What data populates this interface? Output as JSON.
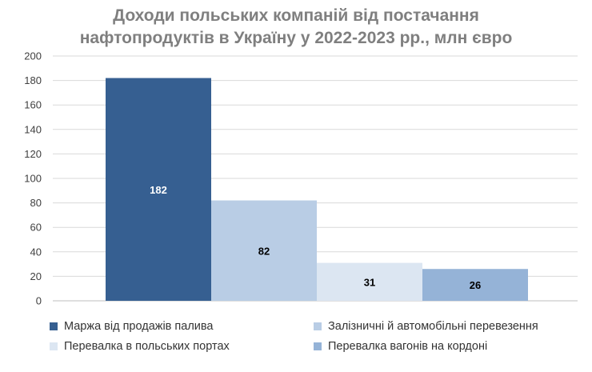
{
  "chart_data": {
    "type": "bar",
    "title_lines": [
      "Доходи польських компаній від постачання",
      "нафтопродуктів в Україну у 2022-2023 рр., млн євро"
    ],
    "ylim": [
      0,
      200
    ],
    "yticks": [
      0,
      20,
      40,
      60,
      80,
      100,
      120,
      140,
      160,
      180,
      200
    ],
    "grid": true,
    "legend_position": "bottom",
    "series": [
      {
        "name": "Маржа від продажів палива",
        "value": 182,
        "label": "182",
        "color": "#365f91"
      },
      {
        "name": "Залізничні й автомобільні перевезення",
        "value": 82,
        "label": "82",
        "color": "#b9cde5"
      },
      {
        "name": "Перевалка в польських портах",
        "value": 31,
        "label": "31",
        "color": "#dce6f2"
      },
      {
        "name": "Перевалка вагонів на кордоні",
        "value": 26,
        "label": "26",
        "color": "#95b3d7"
      }
    ]
  }
}
